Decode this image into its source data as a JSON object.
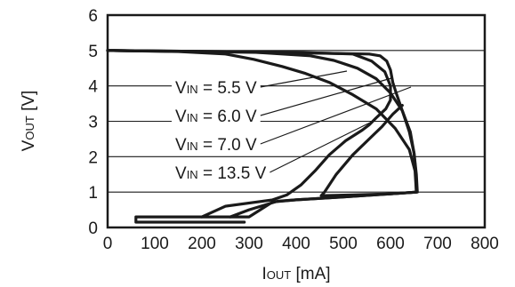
{
  "chart_data": {
    "type": "line",
    "xlabel": {
      "main": "I",
      "sub": "OUT",
      "unit": " [mA]"
    },
    "ylabel": {
      "main": "V",
      "sub": "OUT",
      "unit": " [V]"
    },
    "xlim": [
      0,
      800
    ],
    "ylim": [
      0,
      6
    ],
    "xticks": [
      0,
      100,
      200,
      300,
      400,
      500,
      600,
      700,
      800
    ],
    "yticks": [
      0,
      1,
      2,
      3,
      4,
      5,
      6
    ],
    "grid": true,
    "line_color": "#1a1a1a",
    "series": [
      {
        "name": "VIN = 5.5 V",
        "points": [
          [
            0,
            5
          ],
          [
            150,
            4.97
          ],
          [
            250,
            4.9
          ],
          [
            310,
            4.75
          ],
          [
            370,
            4.55
          ],
          [
            420,
            4.35
          ],
          [
            470,
            4.1
          ],
          [
            520,
            3.75
          ],
          [
            570,
            3.35
          ],
          [
            610,
            2.8
          ],
          [
            640,
            2.2
          ],
          [
            652,
            1.6
          ],
          [
            655,
            1.0
          ],
          [
            600,
            0.95
          ],
          [
            500,
            0.86
          ],
          [
            400,
            0.78
          ],
          [
            350,
            0.72
          ],
          [
            300,
            0.3
          ],
          [
            60,
            0.3
          ],
          [
            60,
            0.15
          ],
          [
            290,
            0.15
          ]
        ]
      },
      {
        "name": "VIN = 6.0 V",
        "points": [
          [
            0,
            5
          ],
          [
            300,
            4.96
          ],
          [
            430,
            4.85
          ],
          [
            480,
            4.72
          ],
          [
            530,
            4.5
          ],
          [
            570,
            4.2
          ],
          [
            600,
            3.8
          ],
          [
            625,
            3.3
          ],
          [
            642,
            2.7
          ],
          [
            650,
            2.1
          ],
          [
            654,
            1.5
          ],
          [
            655,
            1.0
          ],
          [
            600,
            0.95
          ],
          [
            500,
            0.86
          ],
          [
            400,
            0.78
          ],
          [
            360,
            0.74
          ],
          [
            300,
            0.5
          ],
          [
            260,
            0.3
          ]
        ]
      },
      {
        "name": "VIN = 7.0 V",
        "points": [
          [
            0,
            5
          ],
          [
            400,
            4.95
          ],
          [
            520,
            4.9
          ],
          [
            560,
            4.7
          ],
          [
            588,
            4.4
          ],
          [
            600,
            4.0
          ],
          [
            600,
            3.6
          ],
          [
            590,
            3.35
          ],
          [
            570,
            3.1
          ],
          [
            555,
            2.9
          ],
          [
            540,
            2.75
          ],
          [
            505,
            2.45
          ],
          [
            470,
            2.05
          ],
          [
            440,
            1.6
          ],
          [
            410,
            1.2
          ],
          [
            380,
            0.92
          ],
          [
            350,
            0.78
          ],
          [
            250,
            0.6
          ],
          [
            200,
            0.3
          ]
        ]
      },
      {
        "name": "VIN = 13.5 V",
        "points": [
          [
            0,
            5
          ],
          [
            470,
            4.92
          ],
          [
            555,
            4.9
          ],
          [
            578,
            4.85
          ],
          [
            592,
            4.7
          ],
          [
            600,
            4.45
          ],
          [
            605,
            4.1
          ],
          [
            612,
            3.8
          ],
          [
            625,
            3.3
          ],
          [
            640,
            2.7
          ],
          [
            650,
            2.1
          ],
          [
            655,
            1.5
          ],
          [
            657,
            1.0
          ],
          [
            600,
            0.95
          ],
          [
            520,
            0.92
          ],
          [
            453,
            0.9
          ],
          [
            460,
            1.0
          ],
          [
            485,
            1.5
          ],
          [
            520,
            2.05
          ],
          [
            555,
            2.5
          ],
          [
            582,
            2.85
          ],
          [
            605,
            3.2
          ],
          [
            625,
            3.45
          ]
        ]
      }
    ],
    "annotations": [
      {
        "main": "V",
        "sub": "IN",
        "rest": " = 5.5 V"
      },
      {
        "main": "V",
        "sub": "IN",
        "rest": " = 6.0 V"
      },
      {
        "main": "V",
        "sub": "IN",
        "rest": " = 7.0 V"
      },
      {
        "main": "V",
        "sub": "IN",
        "rest": " = 13.5 V"
      }
    ]
  }
}
